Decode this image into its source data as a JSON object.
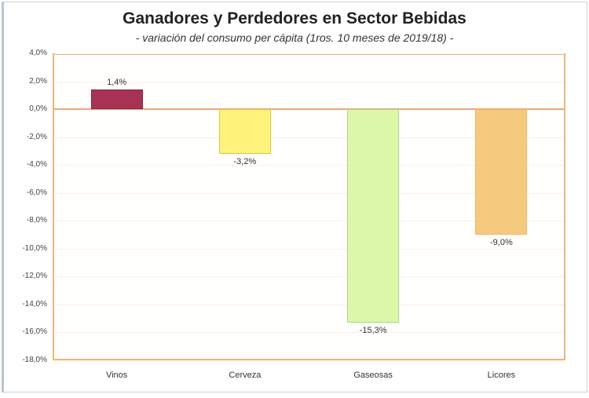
{
  "chart_data": {
    "type": "bar",
    "title": "Ganadores y Perdedores en Sector Bebidas",
    "subtitle": "- variación del consumo per cápita (1ros. 10 meses de 2019/18) -",
    "xlabel": "",
    "ylabel": "",
    "categories": [
      "Vinos",
      "Cerveza",
      "Gaseosas",
      "Licores"
    ],
    "values": [
      1.4,
      -3.2,
      -15.3,
      -9.0
    ],
    "value_labels": [
      "1,4%",
      "-3,2%",
      "-15,3%",
      "-9,0%"
    ],
    "colors": [
      "#a83255",
      "#fef27a",
      "#ddf7a8",
      "#f5c97e"
    ],
    "border_colors": [
      "#8a2244",
      "#d9c840",
      "#a8d88a",
      "#f0b862"
    ],
    "ylim": [
      -18,
      4
    ],
    "yticks": [
      "4,0%",
      "2,0%",
      "0,0%",
      "-2,0%",
      "-4,0%",
      "-6,0%",
      "-8,0%",
      "-10,0%",
      "-12,0%",
      "-14,0%",
      "-16,0%",
      "-18,0%"
    ],
    "grid": true,
    "legend": null
  }
}
